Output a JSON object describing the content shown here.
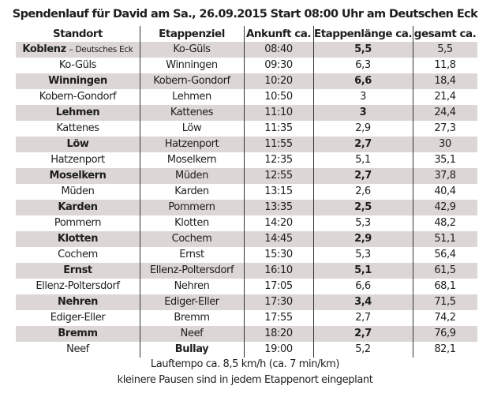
{
  "title": "Spendenlauf für David am Sa., 26.09.2015 Start 08:00 Uhr am Deutschen Eck",
  "columns": [
    "Standort",
    "Etappenziel",
    "Ankunft ca.",
    "Etappenlänge ca.",
    "gesamt ca."
  ],
  "rows": [
    {
      "standort": "Koblenz",
      "standort_sub": "– Deutsches Eck",
      "ziel": "Ko-Güls",
      "ankunft": "08:40",
      "laenge": "5,5",
      "gesamt": "5,5"
    },
    {
      "standort": "Ko-Güls",
      "standort_sub": "",
      "ziel": "Winningen",
      "ankunft": "09:30",
      "laenge": "6,3",
      "gesamt": "11,8"
    },
    {
      "standort": "Winningen",
      "standort_sub": "",
      "ziel": "Kobern-Gondorf",
      "ankunft": "10:20",
      "laenge": "6,6",
      "gesamt": "18,4"
    },
    {
      "standort": "Kobern-Gondorf",
      "standort_sub": "",
      "ziel": "Lehmen",
      "ankunft": "10:50",
      "laenge": "3",
      "gesamt": "21,4"
    },
    {
      "standort": "Lehmen",
      "standort_sub": "",
      "ziel": "Kattenes",
      "ankunft": "11:10",
      "laenge": "3",
      "gesamt": "24,4"
    },
    {
      "standort": "Kattenes",
      "standort_sub": "",
      "ziel": "Löw",
      "ankunft": "11:35",
      "laenge": "2,9",
      "gesamt": "27,3"
    },
    {
      "standort": "Löw",
      "standort_sub": "",
      "ziel": "Hatzenport",
      "ankunft": "11:55",
      "laenge": "2,7",
      "gesamt": "30"
    },
    {
      "standort": "Hatzenport",
      "standort_sub": "",
      "ziel": "Moselkern",
      "ankunft": "12:35",
      "laenge": "5,1",
      "gesamt": "35,1"
    },
    {
      "standort": "Moselkern",
      "standort_sub": "",
      "ziel": "Müden",
      "ankunft": "12:55",
      "laenge": "2,7",
      "gesamt": "37,8"
    },
    {
      "standort": "Müden",
      "standort_sub": "",
      "ziel": "Karden",
      "ankunft": "13:15",
      "laenge": "2,6",
      "gesamt": "40,4"
    },
    {
      "standort": "Karden",
      "standort_sub": "",
      "ziel": "Pommern",
      "ankunft": "13:35",
      "laenge": "2,5",
      "gesamt": "42,9"
    },
    {
      "standort": "Pommern",
      "standort_sub": "",
      "ziel": "Klotten",
      "ankunft": "14:20",
      "laenge": "5,3",
      "gesamt": "48,2"
    },
    {
      "standort": "Klotten",
      "standort_sub": "",
      "ziel": "Cochem",
      "ankunft": "14:45",
      "laenge": "2,9",
      "gesamt": "51,1"
    },
    {
      "standort": "Cochem",
      "standort_sub": "",
      "ziel": "Ernst",
      "ankunft": "15:30",
      "laenge": "5,3",
      "gesamt": "56,4"
    },
    {
      "standort": "Ernst",
      "standort_sub": "",
      "ziel": "Ellenz-Poltersdorf",
      "ankunft": "16:10",
      "laenge": "5,1",
      "gesamt": "61,5"
    },
    {
      "standort": "Ellenz-Poltersdorf",
      "standort_sub": "",
      "ziel": "Nehren",
      "ankunft": "17:05",
      "laenge": "6,6",
      "gesamt": "68,1"
    },
    {
      "standort": "Nehren",
      "standort_sub": "",
      "ziel": "Ediger-Eller",
      "ankunft": "17:30",
      "laenge": "3,4",
      "gesamt": "71,5"
    },
    {
      "standort": "Ediger-Eller",
      "standort_sub": "",
      "ziel": "Bremm",
      "ankunft": "17:55",
      "laenge": "2,7",
      "gesamt": "74,2"
    },
    {
      "standort": "Bremm",
      "standort_sub": "",
      "ziel": "Neef",
      "ankunft": "18:20",
      "laenge": "2,7",
      "gesamt": "76,9"
    },
    {
      "standort": "Neef",
      "standort_sub": "",
      "ziel": "Bullay",
      "ankunft": "19:00",
      "laenge": "5,2",
      "gesamt": "82,1"
    }
  ],
  "footer": {
    "line1": "Lauftempo ca. 8,5 km/h (ca. 7 min/km)",
    "line2": "kleinere Pausen sind in jedem Etappenort eingeplant"
  },
  "colors": {
    "shaded_row": "#dcd7d4",
    "text": "#1e1e1e",
    "divider": "#333333"
  }
}
